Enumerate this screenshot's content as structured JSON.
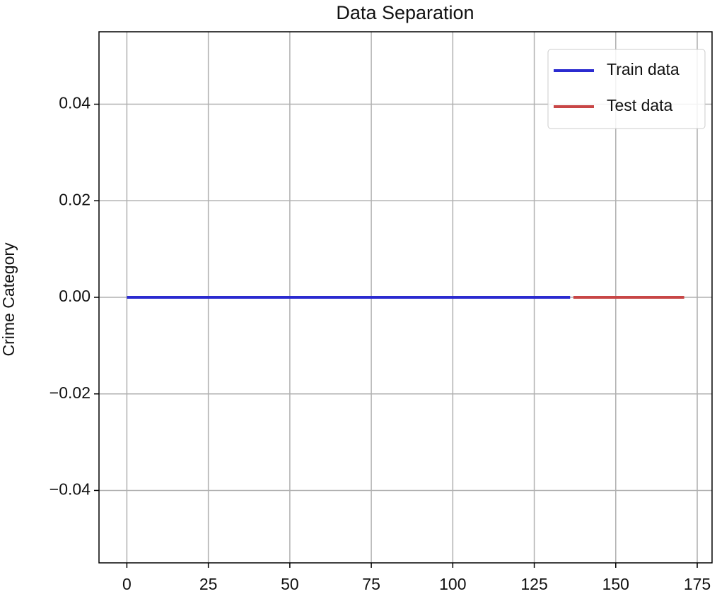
{
  "chart_data": {
    "type": "line",
    "title": "Data Separation",
    "ylabel": "Crime Category",
    "series": [
      {
        "name": "Train data",
        "color": "#2b2bd0",
        "x": [
          0,
          136
        ],
        "values": [
          0,
          0
        ]
      },
      {
        "name": "Test data",
        "color": "#c84646",
        "x": [
          137,
          171
        ],
        "values": [
          0,
          0
        ]
      }
    ],
    "xlim": [
      -8.55,
      179.55
    ],
    "xticks": [
      0,
      25,
      50,
      75,
      100,
      125,
      150,
      175
    ],
    "ylim": [
      -0.055,
      0.055
    ],
    "yticks": [
      {
        "value": -0.04,
        "label": "−0.04"
      },
      {
        "value": -0.02,
        "label": "−0.02"
      },
      {
        "value": 0,
        "label": "0.00"
      },
      0.02,
      0.04
    ],
    "grid": true,
    "legend": "upper right"
  }
}
